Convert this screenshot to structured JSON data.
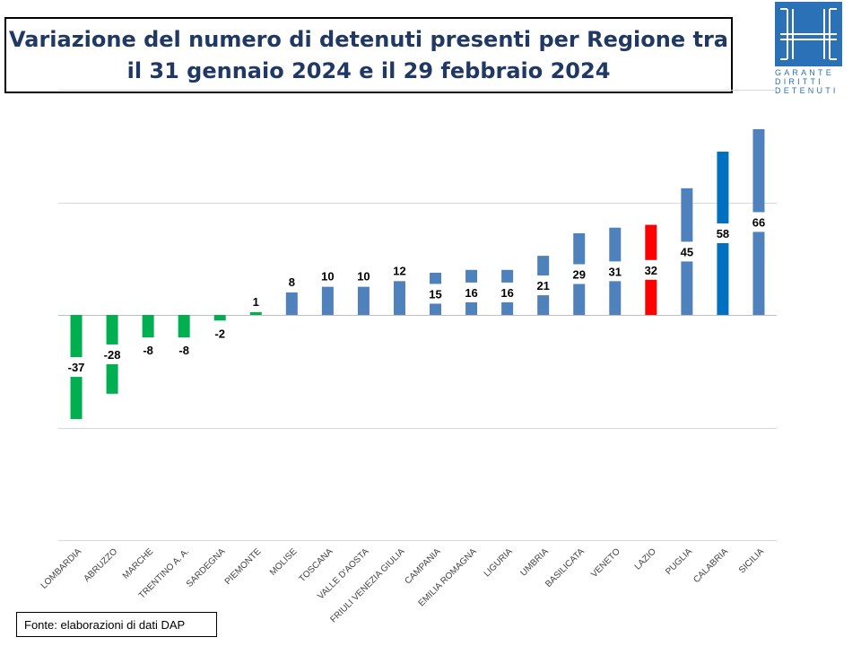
{
  "title": {
    "line1": "Variazione del numero di detenuti presenti per Regione tra",
    "line2": "il 31 gennaio 2024 e il 29 febbraio 2024"
  },
  "logo": {
    "line1": "GARANTE",
    "line2": "DIRITTI",
    "line3": "DETENUTI",
    "color": "#2a71b8"
  },
  "source": "Fonte: elaborazioni di dati DAP",
  "chart_data": {
    "type": "bar",
    "categories": [
      "LOMBARDIA",
      "ABRUZZO",
      "MARCHE",
      "TRENTINO A. A.",
      "SARDEGNA",
      "PIEMONTE",
      "MOLISE",
      "TOSCANA",
      "VALLE D'AOSTA",
      "FRIULI VENEZIA GIULIA",
      "CAMPANIA",
      "EMILIA ROMAGNA",
      "LIGURIA",
      "UMBRIA",
      "BASILICATA",
      "VENETO",
      "LAZIO",
      "PUGLIA",
      "CALABRIA",
      "SICILIA"
    ],
    "values": [
      -37,
      -28,
      -8,
      -8,
      -2,
      1,
      8,
      10,
      10,
      12,
      15,
      16,
      16,
      21,
      29,
      31,
      32,
      45,
      58,
      66
    ],
    "bar_colors": [
      "#00b050",
      "#00b050",
      "#00b050",
      "#00b050",
      "#00b050",
      "#00b050",
      "#4f81bd",
      "#4f81bd",
      "#4f81bd",
      "#4f81bd",
      "#4f81bd",
      "#4f81bd",
      "#4f81bd",
      "#4f81bd",
      "#4f81bd",
      "#4f81bd",
      "#ff0000",
      "#4f81bd",
      "#0070c0",
      "#4f81bd"
    ],
    "ylim": [
      -80,
      80
    ],
    "grid": true,
    "ytick_labels_visible": false,
    "data_labels": true
  }
}
